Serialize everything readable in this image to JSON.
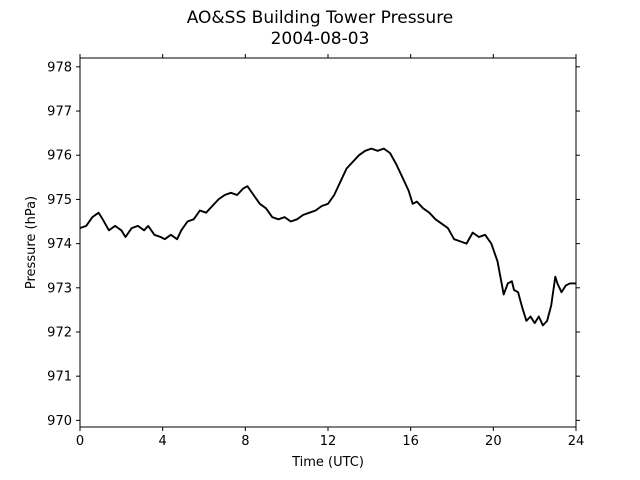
{
  "chart_data": {
    "type": "line",
    "title": "AO&SS Building Tower Pressure",
    "subtitle": "2004-08-03",
    "xlabel": "Time (UTC)",
    "ylabel": "Pressure (hPa)",
    "xlim": [
      0,
      24
    ],
    "ylim": [
      969.85,
      978.2
    ],
    "xticks": [
      0,
      4,
      8,
      12,
      16,
      20,
      24
    ],
    "yticks": [
      970,
      971,
      972,
      973,
      974,
      975,
      976,
      977,
      978
    ],
    "grid": false,
    "line_color": "#000000",
    "series": [
      {
        "x": [
          0,
          0.3,
          0.6,
          0.9,
          1.1,
          1.4,
          1.7,
          2.0,
          2.2,
          2.5,
          2.8,
          3.1,
          3.3,
          3.6,
          3.9,
          4.1,
          4.4,
          4.7,
          4.9,
          5.2,
          5.5,
          5.8,
          6.1,
          6.4,
          6.7,
          7.0,
          7.3,
          7.6,
          7.9,
          8.1,
          8.4,
          8.7,
          9.0,
          9.3,
          9.6,
          9.9,
          10.2,
          10.5,
          10.8,
          11.1,
          11.4,
          11.7,
          12.0,
          12.3,
          12.6,
          12.9,
          13.2,
          13.5,
          13.8,
          14.1,
          14.4,
          14.7,
          15.0,
          15.3,
          15.6,
          15.9,
          16.1,
          16.3,
          16.6,
          16.9,
          17.2,
          17.5,
          17.8,
          18.1,
          18.4,
          18.7,
          19.0,
          19.3,
          19.6,
          19.9,
          20.2,
          20.5,
          20.7,
          20.9,
          21.0,
          21.2,
          21.4,
          21.6,
          21.8,
          22.0,
          22.2,
          22.4,
          22.6,
          22.8,
          23.0,
          23.1,
          23.3,
          23.5,
          23.7,
          24.0
        ],
        "y": [
          974.35,
          974.4,
          974.6,
          974.7,
          974.55,
          974.3,
          974.4,
          974.3,
          974.15,
          974.35,
          974.4,
          974.3,
          974.4,
          974.2,
          974.15,
          974.1,
          974.2,
          974.1,
          974.3,
          974.5,
          974.55,
          974.75,
          974.7,
          974.85,
          975.0,
          975.1,
          975.15,
          975.1,
          975.25,
          975.3,
          975.1,
          974.9,
          974.8,
          974.6,
          974.55,
          974.6,
          974.5,
          974.55,
          974.65,
          974.7,
          974.75,
          974.85,
          974.9,
          975.1,
          975.4,
          975.7,
          975.85,
          976.0,
          976.1,
          976.15,
          976.1,
          976.15,
          976.05,
          975.8,
          975.5,
          975.2,
          974.9,
          974.95,
          974.8,
          974.7,
          974.55,
          974.45,
          974.35,
          974.1,
          974.05,
          974.0,
          974.25,
          974.15,
          974.2,
          974.0,
          973.6,
          972.85,
          973.1,
          973.15,
          972.95,
          972.9,
          972.55,
          972.25,
          972.35,
          972.2,
          972.35,
          972.15,
          972.25,
          972.6,
          973.25,
          973.1,
          972.9,
          973.05,
          973.1,
          973.1
        ]
      }
    ]
  }
}
